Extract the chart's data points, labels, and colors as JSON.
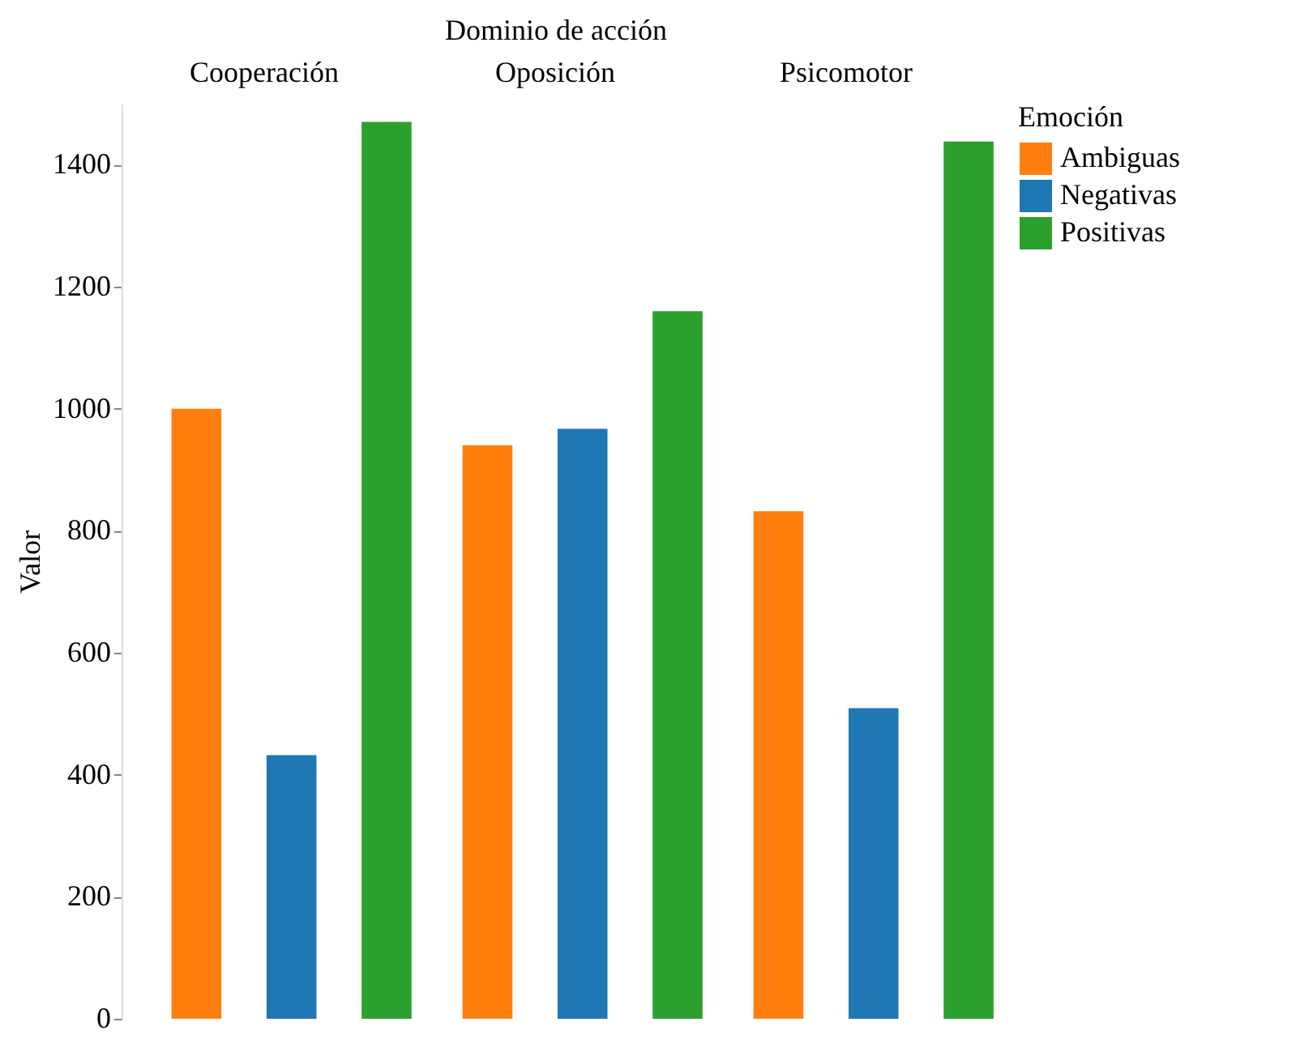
{
  "chart_data": {
    "type": "bar",
    "xlabel": "Dominio de acción",
    "ylabel": "Valor",
    "legend_title": "Emoción",
    "categories": [
      "Cooperación",
      "Oposición",
      "Psicomotor"
    ],
    "series": [
      {
        "name": "Ambiguas",
        "color": "#ff7f0e",
        "values": [
          1000,
          940,
          832
        ]
      },
      {
        "name": "Negativas",
        "color": "#1f77b4",
        "values": [
          432,
          967,
          509
        ]
      },
      {
        "name": "Positivas",
        "color": "#2ca02c",
        "values": [
          1470,
          1160,
          1438
        ]
      }
    ],
    "ylim": [
      0,
      1500
    ],
    "yticks": [
      0,
      200,
      400,
      600,
      800,
      1000,
      1200,
      1400
    ],
    "legend": "top right"
  }
}
